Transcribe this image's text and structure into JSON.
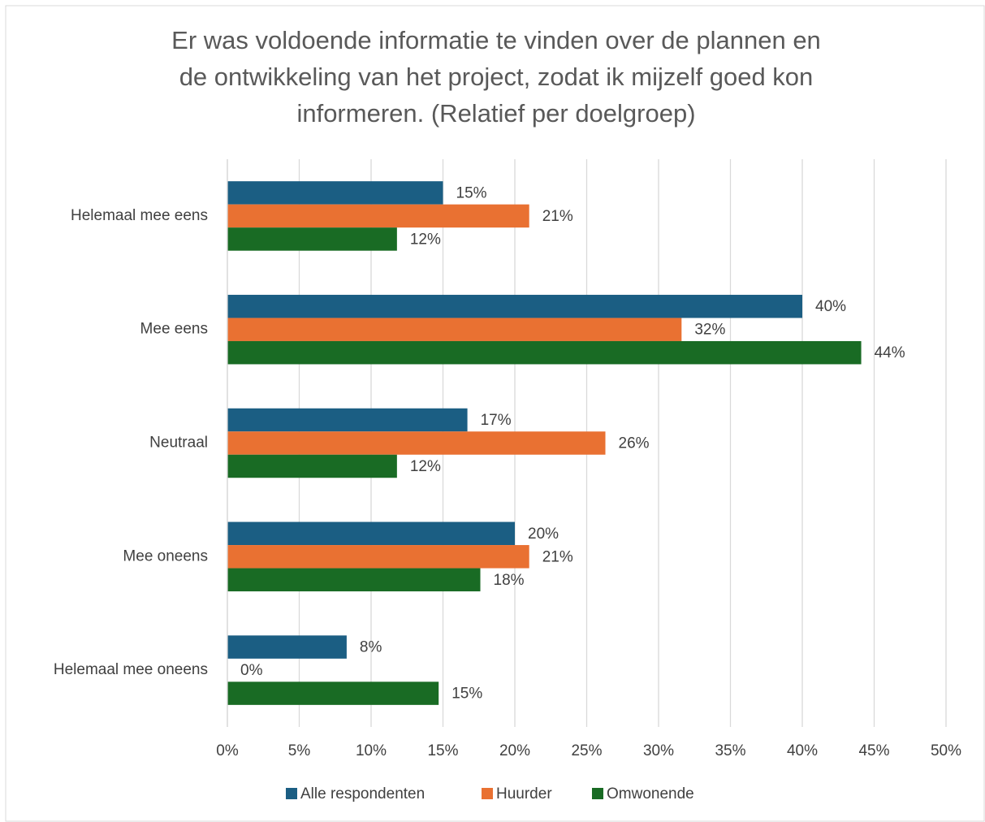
{
  "chart_data": {
    "type": "bar",
    "orientation": "horizontal",
    "title": [
      "Er was voldoende informatie te vinden over de plannen en",
      "de ontwikkeling van het project, zodat ik mijzelf goed kon",
      "informeren. (Relatief per doelgroep)"
    ],
    "categories": [
      "Helemaal mee eens",
      "Mee eens",
      "Neutraal",
      "Mee oneens",
      "Helemaal mee oneens"
    ],
    "series": [
      {
        "name": "Alle respondenten",
        "color": "#1b5e83",
        "values": [
          15.0,
          40.0,
          16.7,
          20.0,
          8.3
        ],
        "value_labels": [
          "15%",
          "40%",
          "17%",
          "20%",
          "8%"
        ]
      },
      {
        "name": "Huurder",
        "color": "#e97132",
        "values": [
          21.0,
          31.6,
          26.3,
          21.0,
          0
        ],
        "value_labels": [
          "21%",
          "32%",
          "26%",
          "21%",
          "0%"
        ]
      },
      {
        "name": "Omwonende",
        "color": "#196b24",
        "values": [
          11.8,
          44.1,
          11.8,
          17.6,
          14.7
        ],
        "value_labels": [
          "12%",
          "44%",
          "12%",
          "18%",
          "15%"
        ]
      }
    ],
    "xlim": [
      0,
      50
    ],
    "xticks": [
      {
        "value": 0,
        "label": "0%"
      },
      {
        "value": 5,
        "label": "5%"
      },
      {
        "value": 10,
        "label": "10%"
      },
      {
        "value": 15,
        "label": "15%"
      },
      {
        "value": 20,
        "label": "20%"
      },
      {
        "value": 25,
        "label": "25%"
      },
      {
        "value": 30,
        "label": "30%"
      },
      {
        "value": 35,
        "label": "35%"
      },
      {
        "value": 40,
        "label": "40%"
      },
      {
        "value": 45,
        "label": "45%"
      },
      {
        "value": 50,
        "label": "50%"
      }
    ],
    "grid": true,
    "legend": "bottom"
  }
}
